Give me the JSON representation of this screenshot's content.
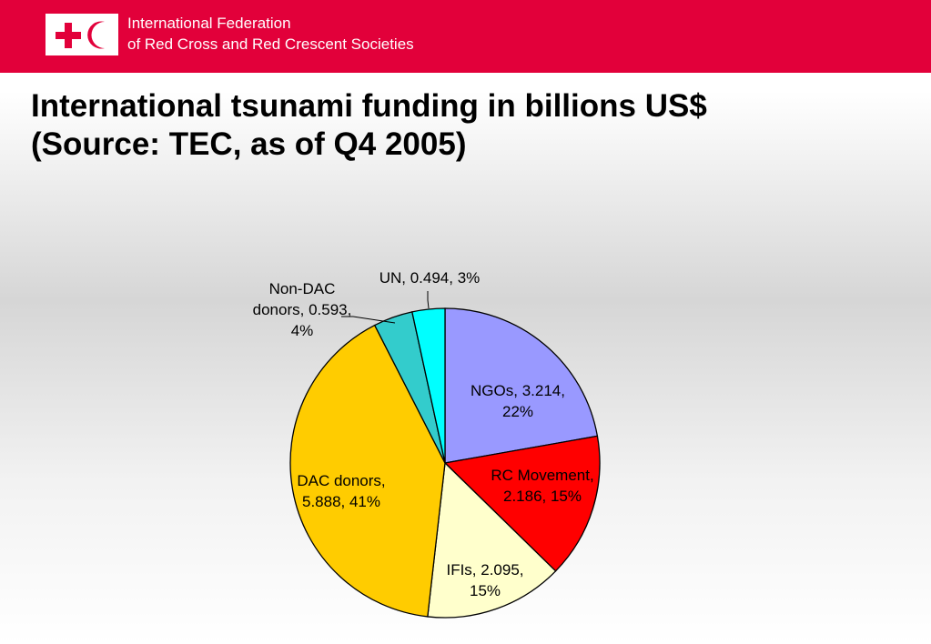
{
  "header": {
    "org_line1": "International Federation",
    "org_line2": "of Red Cross and Red Crescent Societies",
    "brand_color": "#e2003a",
    "logo": "red-cross-red-crescent-emblem"
  },
  "title": {
    "line1": "International tsunami funding in billions US$",
    "line2": "(Source: TEC, as of Q4 2005)"
  },
  "chart_data": {
    "type": "pie",
    "title": "International tsunami funding in billions US$ (Source: TEC, as of Q4 2005)",
    "slices": [
      {
        "name": "NGOs",
        "value": 3.214,
        "percent": 22,
        "color": "#9999ff",
        "label_lines": [
          "NGOs, 3.214,",
          "22%"
        ]
      },
      {
        "name": "RC Movement",
        "value": 2.186,
        "percent": 15,
        "color": "#ff0000",
        "label_lines": [
          "RC Movement,",
          "2.186, 15%"
        ]
      },
      {
        "name": "IFIs",
        "value": 2.095,
        "percent": 15,
        "color": "#ffffcc",
        "label_lines": [
          "IFIs, 2.095,",
          "15%"
        ]
      },
      {
        "name": "DAC donors",
        "value": 5.888,
        "percent": 41,
        "color": "#ffcc00",
        "label_lines": [
          "DAC donors,",
          "5.888, 41%"
        ]
      },
      {
        "name": "Non-DAC donors",
        "value": 0.593,
        "percent": 4,
        "color": "#33cccc",
        "label_lines": [
          "Non-DAC",
          "donors, 0.593,",
          "4%"
        ]
      },
      {
        "name": "UN",
        "value": 0.494,
        "percent": 3,
        "color": "#00ffff",
        "label_lines": [
          "UN, 0.494, 3%"
        ]
      }
    ],
    "legend": "none"
  }
}
